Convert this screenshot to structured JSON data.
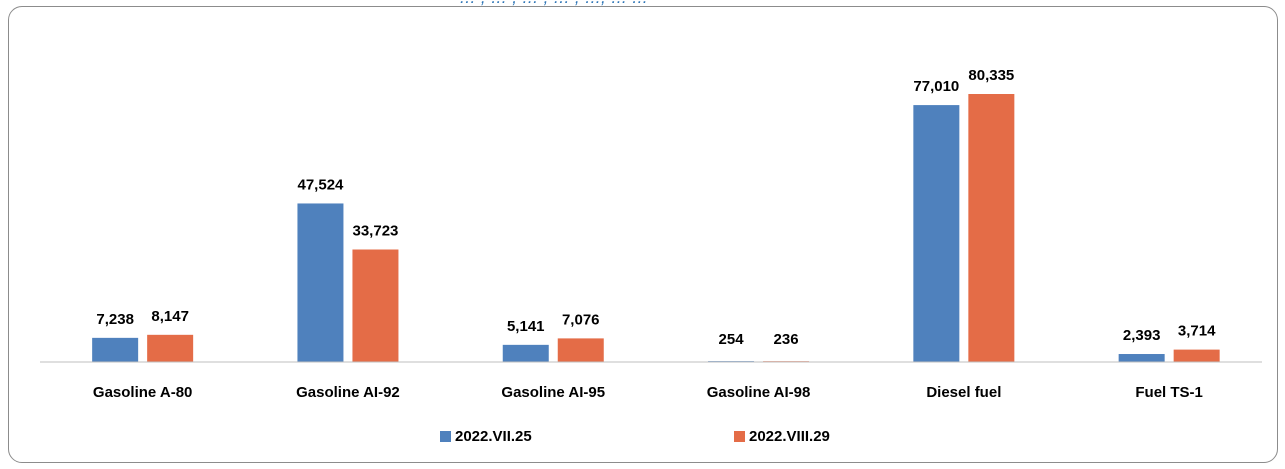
{
  "title_fragment": "... , ... , ... , ... , ..., ... ...",
  "colors": {
    "series1": "#4f81bd",
    "series2": "#e46c47"
  },
  "chart_data": {
    "type": "bar",
    "title": "",
    "xlabel": "",
    "ylabel": "",
    "ylim": [
      0,
      85000
    ],
    "grid": false,
    "legend_position": "bottom",
    "categories": [
      "Gasoline A-80",
      "Gasoline AI-92",
      "Gasoline AI-95",
      "Gasoline AI-98",
      "Diesel fuel",
      "Fuel TS-1"
    ],
    "series": [
      {
        "name": "2022.VII.25",
        "values": [
          7238,
          47524,
          5141,
          254,
          77010,
          2393
        ],
        "labels": [
          "7,238",
          "47,524",
          "5,141",
          "254",
          "77,010",
          "2,393"
        ]
      },
      {
        "name": "2022.VIII.29",
        "values": [
          8147,
          33723,
          7076,
          236,
          80335,
          3714
        ],
        "labels": [
          "8,147",
          "33,723",
          "7,076",
          "236",
          "80,335",
          "3,714"
        ]
      }
    ]
  }
}
